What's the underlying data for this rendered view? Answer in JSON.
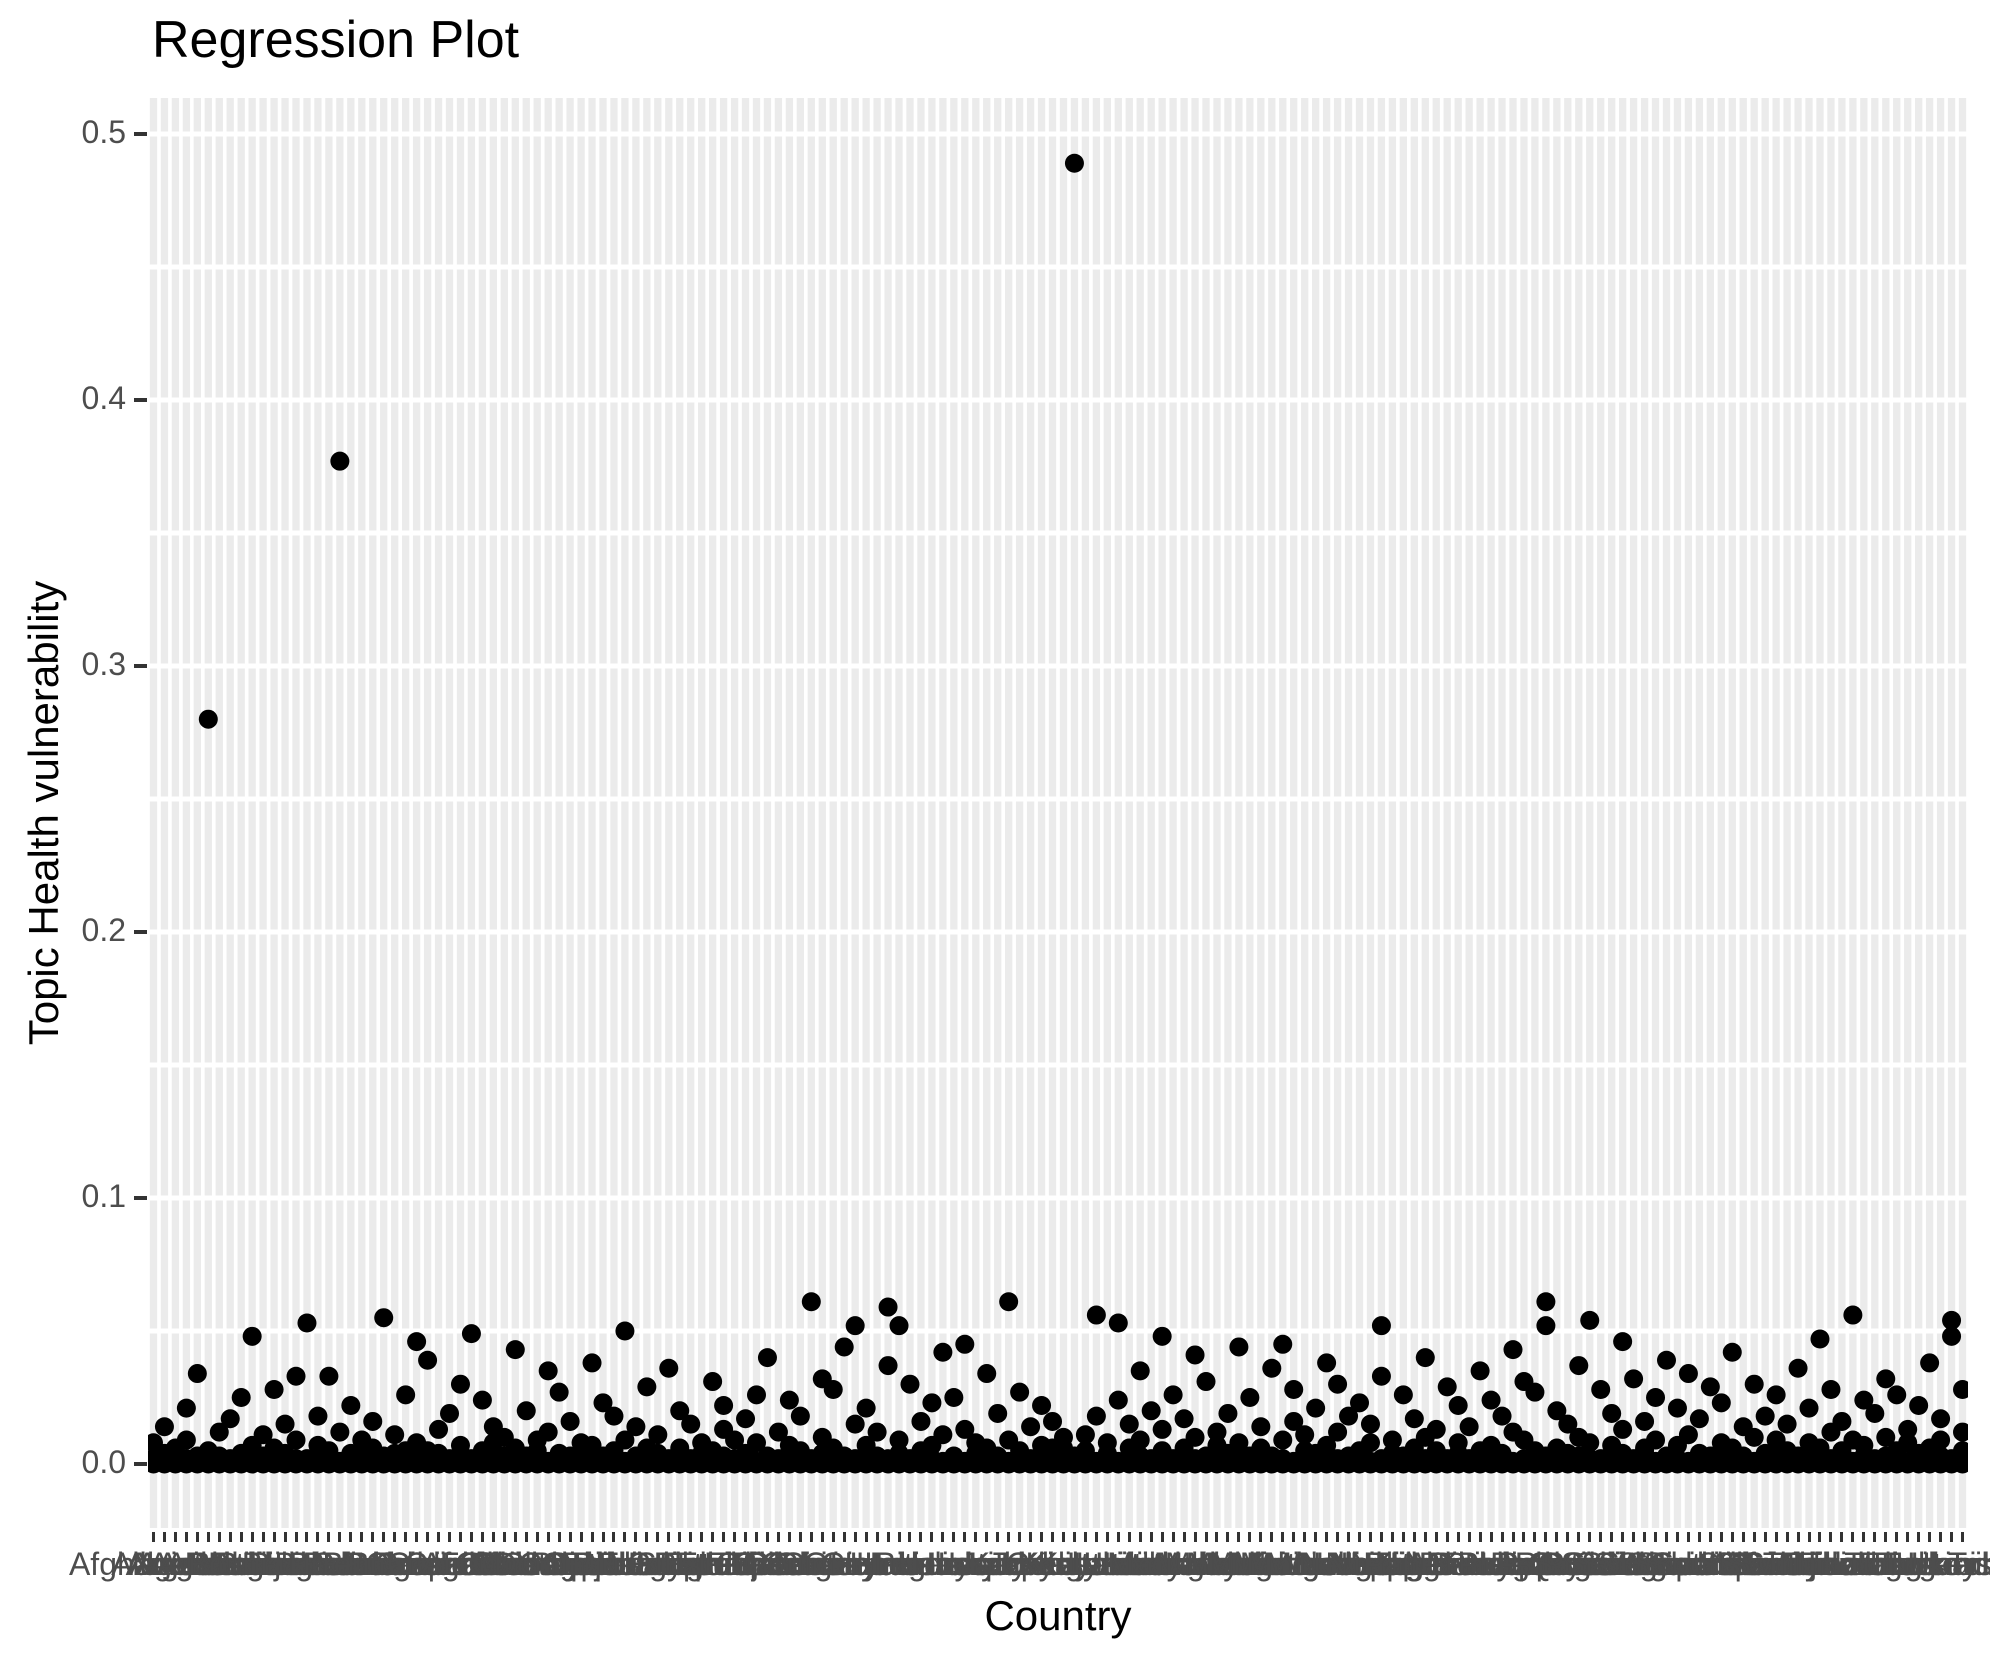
{
  "chart_data": {
    "type": "scatter",
    "title": "Regression Plot",
    "xlabel": "Country",
    "ylabel": "Topic Health vulnerability",
    "ylim": [
      -0.024,
      0.513
    ],
    "grid": "x-major light stripes, y-major+minor white lines every 0.05",
    "legend": "none",
    "yticks": [
      {
        "label": "0.0",
        "value": 0.0
      },
      {
        "label": "0.1",
        "value": 0.1
      },
      {
        "label": "0.2",
        "value": 0.2
      },
      {
        "label": "0.3",
        "value": 0.3
      },
      {
        "label": "0.4",
        "value": 0.4
      },
      {
        "label": "0.5",
        "value": 0.5
      }
    ],
    "colors": {
      "background": "#ffffff",
      "panel_stripe": "#ebebeb",
      "h_gridline": "#ffffff",
      "point": "#000000",
      "axis_tick": "#333333",
      "tick_label": "#4d4d4d",
      "title": "#000000",
      "axis_title": "#000000"
    },
    "outliers": [
      {
        "category": "Armenia",
        "index": 5,
        "value": 0.28
      },
      {
        "category": "Bhutan",
        "index": 17,
        "value": 0.377
      },
      {
        "category": "Kiribati",
        "index": 84,
        "value": 0.489
      }
    ],
    "categories": [
      "Afghanistan",
      "Albania",
      "Algeria",
      "Angola",
      "Argentina",
      "Armenia",
      "Australia",
      "Austria",
      "Azerbaijan",
      "Bahamas",
      "Bahrain",
      "Bangladesh",
      "Barbados",
      "Belarus",
      "Belgium",
      "Belize",
      "Benin",
      "Bhutan",
      "Bolivia",
      "Bosnia and Herzegovina",
      "Botswana",
      "Brazil",
      "Brunei",
      "Bulgaria",
      "Burkina Faso",
      "Burundi",
      "Cambodia",
      "Cameroon",
      "Canada",
      "Cape Verde",
      "Central African Republic",
      "Chad",
      "Chile",
      "China",
      "Colombia",
      "Comoros",
      "Congo",
      "Costa Rica",
      "Croatia",
      "Cuba",
      "Cyprus",
      "Czechia",
      "Denmark",
      "Djibouti",
      "Dominican Republic",
      "DR Congo",
      "Ecuador",
      "Egypt",
      "El Salvador",
      "Equatorial Guinea",
      "Eritrea",
      "Estonia",
      "Eswatini",
      "Ethiopia",
      "Fiji",
      "Finland",
      "France",
      "Gabon",
      "Gambia",
      "Georgia",
      "Germany",
      "Ghana",
      "Greece",
      "Guatemala",
      "Guinea",
      "Guinea-Bissau",
      "Guyana",
      "Haiti",
      "Honduras",
      "Hungary",
      "Iceland",
      "India",
      "Indonesia",
      "Iran",
      "Iraq",
      "Ireland",
      "Israel",
      "Italy",
      "Ivory Coast",
      "Jamaica",
      "Japan",
      "Jordan",
      "Kazakhstan",
      "Kenya",
      "Kiribati",
      "Kuwait",
      "Kyrgyzstan",
      "Laos",
      "Latvia",
      "Lebanon",
      "Lesotho",
      "Liberia",
      "Libya",
      "Lithuania",
      "Luxembourg",
      "Madagascar",
      "Malawi",
      "Malaysia",
      "Maldives",
      "Mali",
      "Malta",
      "Mauritania",
      "Mauritius",
      "Mexico",
      "Moldova",
      "Mongolia",
      "Montenegro",
      "Morocco",
      "Mozambique",
      "Myanmar",
      "Namibia",
      "Nepal",
      "Netherlands",
      "New Zealand",
      "Nicaragua",
      "Niger",
      "Nigeria",
      "North Korea",
      "North Macedonia",
      "Norway",
      "Oman",
      "Pakistan",
      "Panama",
      "Papua New Guinea",
      "Paraguay",
      "Peru",
      "Philippines",
      "Poland",
      "Portugal",
      "Qatar",
      "Romania",
      "Russia",
      "Rwanda",
      "Samoa",
      "Saudi Arabia",
      "Senegal",
      "Serbia",
      "Sierra Leone",
      "Singapore",
      "Slovakia",
      "Slovenia",
      "Solomon Islands",
      "Somalia",
      "South Africa",
      "South Korea",
      "South Sudan",
      "Spain",
      "Sri Lanka",
      "Sudan",
      "Suriname",
      "Sweden",
      "Switzerland",
      "Syria",
      "Taiwan",
      "Tajikistan",
      "Tanzania",
      "Thailand",
      "Timor-Leste",
      "Togo",
      "Tonga",
      "Trinidad and Tobago",
      "Tunisia",
      "Turkey",
      "Turkmenistan",
      "Uganda",
      "Ukraine"
    ],
    "points_milli_note": "per-country point values in 1/1000 units of Topic Health vulnerability",
    "points_milli": [
      [
        2,
        0,
        8,
        1
      ],
      [
        0,
        4,
        1,
        14
      ],
      [
        1,
        0,
        6,
        2
      ],
      [
        9,
        0,
        2,
        21
      ],
      [
        0,
        34,
        3,
        1
      ],
      [
        280,
        2,
        0,
        5
      ],
      [
        1,
        12,
        0,
        3
      ],
      [
        0,
        2,
        17,
        1
      ],
      [
        25,
        0,
        4,
        2
      ],
      [
        48,
        1,
        0,
        7
      ],
      [
        3,
        0,
        11,
        1
      ],
      [
        0,
        6,
        2,
        28
      ],
      [
        15,
        1,
        0,
        4
      ],
      [
        2,
        33,
        0,
        9
      ],
      [
        53,
        2,
        1,
        0
      ],
      [
        0,
        7,
        3,
        18
      ],
      [
        33,
        0,
        2,
        5
      ],
      [
        377,
        1,
        0,
        12
      ],
      [
        4,
        0,
        22,
        2
      ],
      [
        0,
        9,
        1,
        3
      ],
      [
        16,
        2,
        0,
        6
      ],
      [
        55,
        0,
        3,
        1
      ],
      [
        2,
        11,
        0,
        4
      ],
      [
        0,
        5,
        26,
        1
      ],
      [
        46,
        3,
        0,
        8
      ],
      [
        39,
        1,
        0,
        5
      ],
      [
        2,
        0,
        13,
        4
      ],
      [
        0,
        19,
        1,
        2
      ],
      [
        7,
        0,
        3,
        30
      ],
      [
        49,
        1,
        0,
        2
      ],
      [
        5,
        0,
        24,
        1
      ],
      [
        0,
        8,
        2,
        14
      ],
      [
        3,
        1,
        0,
        10
      ],
      [
        43,
        0,
        6,
        2
      ],
      [
        1,
        20,
        0,
        3
      ],
      [
        0,
        2,
        9,
        5
      ],
      [
        12,
        0,
        1,
        35
      ],
      [
        4,
        27,
        0,
        2
      ],
      [
        0,
        1,
        16,
        3
      ],
      [
        8,
        0,
        2,
        1
      ],
      [
        2,
        38,
        0,
        7
      ],
      [
        0,
        3,
        1,
        23
      ],
      [
        18,
        0,
        5,
        2
      ],
      [
        50,
        1,
        0,
        9
      ],
      [
        3,
        0,
        14,
        2
      ],
      [
        0,
        29,
        1,
        6
      ],
      [
        11,
        2,
        0,
        4
      ],
      [
        0,
        1,
        36,
        2
      ],
      [
        6,
        0,
        3,
        20
      ],
      [
        2,
        15,
        0,
        1
      ],
      [
        0,
        4,
        8,
        2
      ],
      [
        31,
        0,
        1,
        5
      ],
      [
        3,
        22,
        0,
        13
      ],
      [
        1,
        0,
        9,
        2
      ],
      [
        0,
        17,
        2,
        4
      ],
      [
        26,
        1,
        0,
        8
      ],
      [
        2,
        0,
        40,
        3
      ],
      [
        0,
        12,
        1,
        2
      ],
      [
        7,
        3,
        0,
        24
      ],
      [
        1,
        0,
        18,
        5
      ],
      [
        61,
        2,
        0,
        1
      ],
      [
        4,
        0,
        10,
        32
      ],
      [
        0,
        28,
        2,
        6
      ],
      [
        44,
        1,
        0,
        3
      ],
      [
        52,
        0,
        15,
        2
      ],
      [
        1,
        7,
        0,
        21
      ],
      [
        0,
        3,
        12,
        1
      ],
      [
        59,
        2,
        0,
        37
      ],
      [
        52,
        0,
        4,
        9
      ],
      [
        2,
        30,
        1,
        0
      ],
      [
        0,
        5,
        16,
        3
      ],
      [
        23,
        0,
        2,
        7
      ],
      [
        42,
        1,
        0,
        11
      ],
      [
        3,
        0,
        25,
        2
      ],
      [
        0,
        13,
        1,
        45
      ],
      [
        8,
        2,
        0,
        4
      ],
      [
        1,
        0,
        34,
        6
      ],
      [
        0,
        19,
        2,
        3
      ],
      [
        61,
        0,
        1,
        9
      ],
      [
        5,
        27,
        0,
        2
      ],
      [
        2,
        0,
        14,
        1
      ],
      [
        0,
        7,
        3,
        22
      ],
      [
        16,
        1,
        0,
        6
      ],
      [
        2,
        0,
        10,
        6
      ],
      [
        489,
        3,
        0,
        1
      ],
      [
        0,
        11,
        2,
        5
      ],
      [
        56,
        1,
        0,
        18
      ],
      [
        4,
        0,
        8,
        2
      ],
      [
        53,
        24,
        0,
        1
      ],
      [
        0,
        2,
        15,
        6
      ],
      [
        9,
        0,
        3,
        35
      ],
      [
        1,
        20,
        0,
        2
      ],
      [
        48,
        0,
        5,
        13
      ],
      [
        2,
        1,
        0,
        26
      ],
      [
        0,
        6,
        17,
        3
      ],
      [
        10,
        0,
        2,
        41
      ],
      [
        3,
        31,
        1,
        0
      ],
      [
        0,
        2,
        12,
        7
      ],
      [
        19,
        0,
        4,
        1
      ],
      [
        2,
        44,
        0,
        8
      ],
      [
        0,
        3,
        25,
        1
      ],
      [
        14,
        0,
        2,
        6
      ],
      [
        1,
        36,
        0,
        3
      ],
      [
        45,
        0,
        9,
        2
      ],
      [
        0,
        16,
        1,
        28
      ],
      [
        5,
        0,
        3,
        11
      ],
      [
        2,
        21,
        0,
        4
      ],
      [
        0,
        1,
        38,
        7
      ],
      [
        12,
        0,
        2,
        30
      ],
      [
        3,
        18,
        0,
        1
      ],
      [
        0,
        5,
        23,
        2
      ],
      [
        8,
        0,
        1,
        15
      ],
      [
        52,
        2,
        0,
        33
      ],
      [
        1,
        9,
        0,
        4
      ],
      [
        0,
        26,
        3,
        2
      ],
      [
        17,
        0,
        6,
        1
      ],
      [
        2,
        40,
        0,
        10
      ],
      [
        0,
        3,
        13,
        5
      ],
      [
        29,
        1,
        0,
        2
      ],
      [
        4,
        0,
        22,
        8
      ],
      [
        0,
        14,
        2,
        1
      ],
      [
        35,
        0,
        5,
        3
      ],
      [
        1,
        24,
        0,
        7
      ],
      [
        0,
        2,
        18,
        4
      ],
      [
        43,
        0,
        1,
        12
      ],
      [
        2,
        9,
        0,
        31
      ],
      [
        0,
        5,
        27,
        1
      ],
      [
        61,
        52,
        3,
        0
      ],
      [
        6,
        0,
        20,
        2
      ],
      [
        1,
        15,
        0,
        4
      ],
      [
        0,
        3,
        10,
        37
      ],
      [
        54,
        0,
        2,
        8
      ],
      [
        2,
        28,
        1,
        0
      ],
      [
        0,
        7,
        19,
        3
      ],
      [
        13,
        0,
        4,
        46
      ],
      [
        1,
        32,
        0,
        2
      ],
      [
        0,
        6,
        16,
        5
      ],
      [
        25,
        0,
        1,
        9
      ],
      [
        3,
        0,
        39,
        2
      ],
      [
        0,
        21,
        2,
        7
      ],
      [
        11,
        1,
        0,
        34
      ],
      [
        2,
        0,
        17,
        4
      ],
      [
        0,
        29,
        3,
        1
      ],
      [
        8,
        0,
        5,
        23
      ],
      [
        1,
        42,
        0,
        6
      ],
      [
        0,
        2,
        14,
        3
      ],
      [
        30,
        0,
        1,
        10
      ],
      [
        4,
        18,
        0,
        2
      ],
      [
        0,
        3,
        26,
        9
      ],
      [
        15,
        0,
        2,
        5
      ],
      [
        1,
        36,
        0,
        3
      ],
      [
        0,
        8,
        21,
        2
      ],
      [
        47,
        0,
        6,
        1
      ],
      [
        2,
        12,
        0,
        28
      ],
      [
        0,
        4,
        16,
        5
      ],
      [
        56,
        1,
        0,
        9
      ],
      [
        3,
        0,
        24,
        7
      ],
      [
        0,
        19,
        2,
        1
      ],
      [
        10,
        0,
        3,
        32
      ],
      [
        2,
        26,
        0,
        5
      ],
      [
        0,
        1,
        13,
        8
      ],
      [
        22,
        0,
        4,
        2
      ],
      [
        1,
        38,
        0,
        6
      ],
      [
        0,
        9,
        17,
        3
      ],
      [
        54,
        48,
        2,
        0
      ],
      [
        5,
        0,
        28,
        12
      ]
    ]
  }
}
